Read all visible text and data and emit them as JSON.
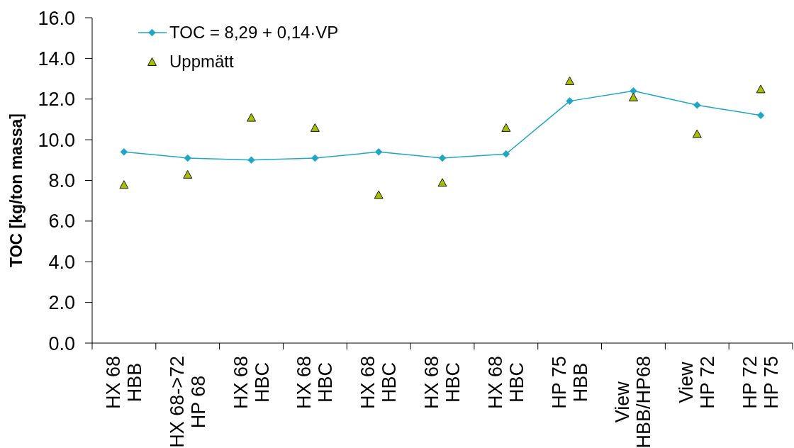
{
  "chart_data": {
    "type": "line",
    "ylabel": "TOC [kg/ton massa]",
    "categories": [
      "HX 68\nHBB",
      "HX 68->72\nHP 68",
      "HX 68\nHBC",
      "HX 68\nHBC",
      "HX 68\nHBC",
      "HX 68\nHBC",
      "HX 68\nHBC",
      "HP 75\nHBB",
      "View\nHBB/HP68",
      "View\nHP 72",
      "HP 72\nHP 75"
    ],
    "series": [
      {
        "name": "TOC = 8,29 + 0,14·VP",
        "type": "line",
        "color": "#1fa6c4",
        "marker": "diamond",
        "values": [
          9.4,
          9.1,
          9.0,
          9.1,
          9.4,
          9.1,
          9.3,
          11.9,
          12.4,
          11.7,
          11.2
        ]
      },
      {
        "name": "Uppmätt",
        "type": "scatter",
        "color": "#a8bf00",
        "marker": "triangle",
        "values": [
          7.8,
          8.3,
          11.1,
          10.6,
          7.3,
          7.9,
          10.6,
          12.9,
          12.1,
          10.3,
          12.5
        ]
      }
    ],
    "ylim": [
      0,
      16
    ],
    "yticks": [
      {
        "value": 0,
        "label": "0.0"
      },
      {
        "value": 2,
        "label": "2.0"
      },
      {
        "value": 4,
        "label": "4.0"
      },
      {
        "value": 6,
        "label": "6.0"
      },
      {
        "value": 8,
        "label": "8.0"
      },
      {
        "value": 10,
        "label": "10.0"
      },
      {
        "value": 12,
        "label": "12.0"
      },
      {
        "value": 14,
        "label": "14.0"
      },
      {
        "value": 16,
        "label": "16.0"
      }
    ],
    "legend": "top left"
  }
}
